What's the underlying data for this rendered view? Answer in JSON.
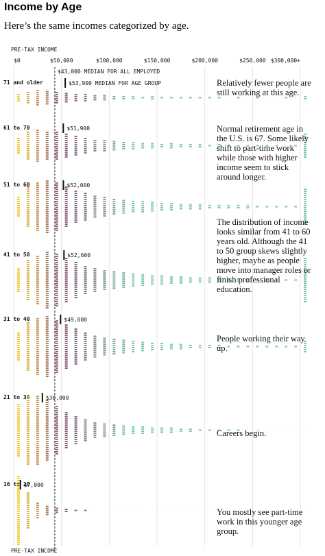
{
  "title": "Income by Age",
  "subtitle": "Here’s the same incomes categorized by age.",
  "chart_data": {
    "type": "beeswarm",
    "x_label": "PRE-TAX INCOME",
    "xlim": [
      0,
      310000
    ],
    "xticks": [
      {
        "value": 0,
        "label": "$0"
      },
      {
        "value": 50000,
        "label": "$50,000"
      },
      {
        "value": 100000,
        "label": "$100,000"
      },
      {
        "value": 150000,
        "label": "$150,000"
      },
      {
        "value": 200000,
        "label": "$200,000"
      },
      {
        "value": 250000,
        "label": "$250,000"
      },
      {
        "value": 300000,
        "label": "$300,000+"
      }
    ],
    "grid": true,
    "overall_median": 43000,
    "overall_median_label": "$43,000 MEDIAN FOR ALL EMPLOYED",
    "color_stops": [
      {
        "value": 0,
        "color": "#f2cc3c"
      },
      {
        "value": 45000,
        "color": "#8b5a78"
      },
      {
        "value": 120000,
        "color": "#7fc8a9"
      }
    ],
    "bins": [
      0,
      10000,
      20000,
      30000,
      40000,
      50000,
      60000,
      70000,
      80000,
      90000,
      100000,
      110000,
      120000,
      130000,
      140000,
      150000,
      160000,
      170000,
      180000,
      190000,
      200000,
      210000,
      220000,
      230000,
      240000,
      250000,
      260000,
      270000,
      280000,
      290000,
      300000,
      310000
    ],
    "groups": [
      {
        "name": "71 and older",
        "median": 53900,
        "median_label": "$53,900 MEDIAN FOR AGE GROUP",
        "note": "Relatively fewer people are still working at this age.",
        "counts": [
          4,
          6,
          8,
          7,
          6,
          5,
          4,
          4,
          3,
          3,
          2,
          2,
          2,
          1,
          2,
          1,
          1,
          1,
          1,
          1,
          1,
          1,
          0,
          1,
          0,
          1,
          0,
          0,
          1,
          0,
          2
        ]
      },
      {
        "name": "61 to 70",
        "median": 51900,
        "median_label": "$51,900",
        "note": "Normal retirement age in the U.S. is 67. Some likely shift to part-time work while those with higher income seem to stick around longer.",
        "counts": [
          8,
          14,
          16,
          14,
          14,
          12,
          10,
          8,
          6,
          6,
          5,
          4,
          4,
          3,
          3,
          2,
          3,
          2,
          2,
          2,
          1,
          2,
          1,
          1,
          1,
          1,
          1,
          1,
          0,
          1,
          12
        ]
      },
      {
        "name": "51 to 60",
        "median": 52000,
        "median_label": "$52,000",
        "counts": [
          10,
          20,
          24,
          26,
          24,
          20,
          16,
          14,
          11,
          10,
          8,
          7,
          6,
          6,
          5,
          4,
          4,
          3,
          3,
          3,
          2,
          2,
          2,
          2,
          2,
          1,
          1,
          1,
          1,
          1,
          18
        ]
      },
      {
        "name": "41 to 50",
        "median": 52600,
        "median_label": "$52,600",
        "note": "The distribution of income looks similar from 41 to 60 years old. Although the 41 to 50 group skews slightly higher, maybe as people move into manager roles or finish professional education.",
        "counts": [
          12,
          20,
          24,
          28,
          26,
          22,
          18,
          14,
          12,
          10,
          9,
          8,
          7,
          6,
          5,
          5,
          4,
          4,
          3,
          3,
          3,
          2,
          2,
          2,
          2,
          1,
          2,
          1,
          1,
          1,
          22
        ]
      },
      {
        "name": "31 to 40",
        "median": 49000,
        "median_label": "$49,000",
        "note": "People working their way up.",
        "counts": [
          14,
          24,
          28,
          30,
          26,
          22,
          18,
          14,
          11,
          9,
          8,
          7,
          6,
          5,
          4,
          4,
          3,
          3,
          2,
          2,
          2,
          2,
          1,
          1,
          1,
          1,
          1,
          1,
          1,
          1,
          6
        ]
      },
      {
        "name": "21 to 30",
        "median": 30000,
        "median_label": "$30,000",
        "note": "Careers begin.",
        "counts": [
          26,
          34,
          34,
          30,
          24,
          18,
          14,
          11,
          8,
          7,
          6,
          5,
          4,
          4,
          3,
          3,
          3,
          2,
          2,
          1,
          1,
          1,
          1,
          1,
          0,
          0,
          0,
          0,
          0,
          0,
          0
        ]
      },
      {
        "name": "16 to 20",
        "median": 7000,
        "median_label": "$7,000",
        "note": "You mostly see part-time work in this younger age group.",
        "counts": [
          34,
          18,
          8,
          5,
          3,
          2,
          1,
          1,
          0,
          0,
          0,
          0,
          0,
          0,
          0,
          0,
          0,
          0,
          0,
          0,
          0,
          0,
          0,
          0,
          0,
          0,
          0,
          0,
          0,
          0,
          0
        ]
      }
    ]
  }
}
